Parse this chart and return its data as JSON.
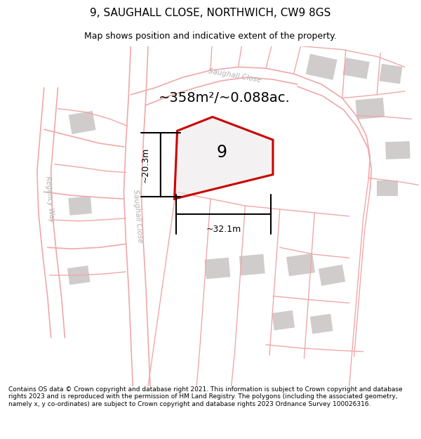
{
  "title": "9, SAUGHALL CLOSE, NORTHWICH, CW9 8GS",
  "subtitle": "Map shows position and indicative extent of the property.",
  "area_text": "~358m²/~0.088ac.",
  "width_label": "~32.1m",
  "height_label": "~20.3m",
  "plot_number": "9",
  "footer": "Contains OS data © Crown copyright and database right 2021. This information is subject to Crown copyright and database rights 2023 and is reproduced with the permission of HM Land Registry. The polygons (including the associated geometry, namely x, y co-ordinates) are subject to Crown copyright and database rights 2023 Ordnance Survey 100026316.",
  "bg_color": "#f0eeee",
  "road_color": "#f0a8a8",
  "building_color": "#d0cccc",
  "highlight_color": "#cc0000",
  "title_fontsize": 11,
  "subtitle_fontsize": 9,
  "footer_fontsize": 6.5
}
